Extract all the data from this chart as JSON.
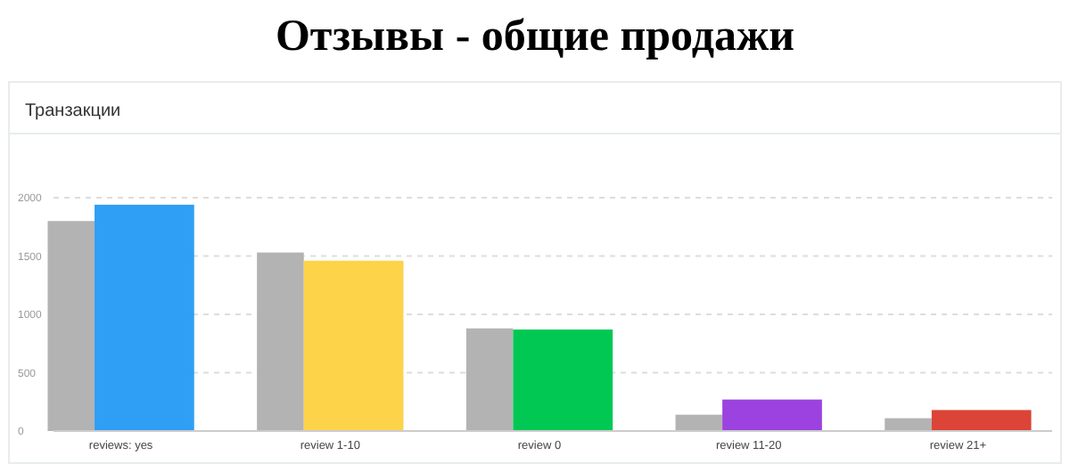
{
  "chart_data": {
    "type": "bar",
    "title": "Отзывы - общие продажи",
    "subtitle": "Транзакции",
    "categories": [
      "reviews: yes",
      "review 1-10",
      "review 0",
      "review 11-20",
      "review 21+"
    ],
    "series": [
      {
        "color": "#b3b3b3",
        "values": [
          1800,
          1530,
          880,
          140,
          110
        ]
      },
      {
        "colors": [
          "#2e9ff5",
          "#fdd34a",
          "#00c853",
          "#9b42e0",
          "#db4437"
        ],
        "values": [
          1940,
          1460,
          870,
          270,
          180
        ]
      }
    ],
    "ylim": [
      0,
      2000
    ],
    "yticks": [
      0,
      500,
      1000,
      1500,
      2000
    ],
    "grid": "y"
  }
}
